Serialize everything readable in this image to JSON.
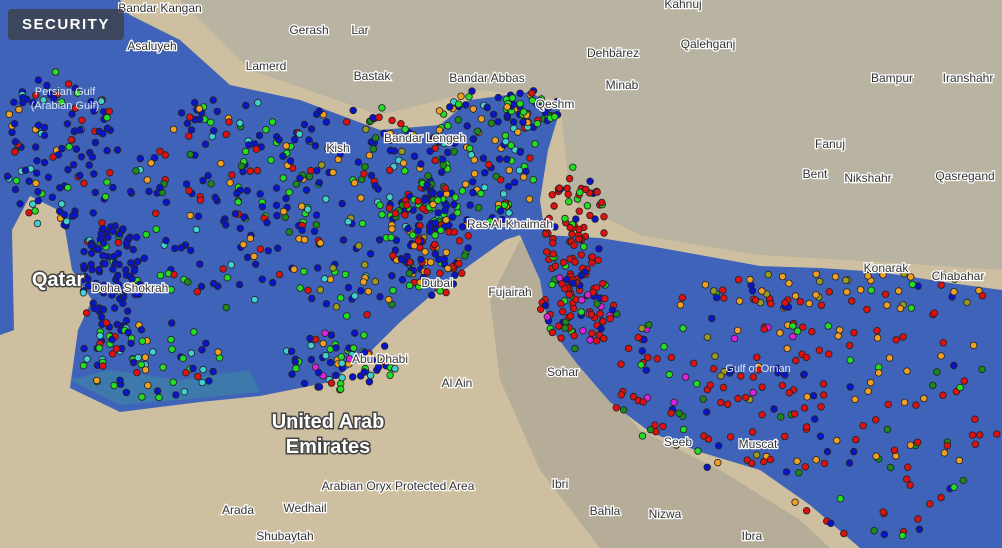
{
  "badge": {
    "label": "SECURITY"
  },
  "colors": {
    "water": "#3f63b8",
    "land": "#cdbf9f",
    "mountains": "#b8b09c"
  },
  "vessel_colors": [
    "#0a14c8",
    "#e01010",
    "#22dd22",
    "#f0a020",
    "#40d0d0",
    "#e020e0",
    "#1a8a1a",
    "#9a9a20"
  ],
  "labels": {
    "water": [
      {
        "text": "Persian Gulf\n(Arabian Gulf)"
      },
      {
        "text": "Gulf of Oman"
      }
    ],
    "countries": [
      {
        "text": "United Arab\nEmirates"
      },
      {
        "text": "Qatar"
      }
    ],
    "places": [
      {
        "text": "Bandar Kangan"
      },
      {
        "text": "Asaluyeh"
      },
      {
        "text": "Gerash"
      },
      {
        "text": "Lar"
      },
      {
        "text": "Lamerd"
      },
      {
        "text": "Bastak"
      },
      {
        "text": "Bandar Abbas"
      },
      {
        "text": "Minab"
      },
      {
        "text": "Kahnuj"
      },
      {
        "text": "Dehbärez"
      },
      {
        "text": "Qalehganj"
      },
      {
        "text": "Bampur"
      },
      {
        "text": "Iranshahr"
      },
      {
        "text": "Fanuj"
      },
      {
        "text": "Bent"
      },
      {
        "text": "Nikshahr"
      },
      {
        "text": "Qasregand"
      },
      {
        "text": "Konarak"
      },
      {
        "text": "Chabahar"
      },
      {
        "text": "Kish"
      },
      {
        "text": "Bandar Lengeh"
      },
      {
        "text": "Qeshm"
      },
      {
        "text": "Ras Al-Khaimah"
      },
      {
        "text": "Dubai"
      },
      {
        "text": "Fujairah"
      },
      {
        "text": "Abu Dhabi"
      },
      {
        "text": "Al Ain"
      },
      {
        "text": "Sohar"
      },
      {
        "text": "Seeb"
      },
      {
        "text": "Muscat"
      },
      {
        "text": "Ibri"
      },
      {
        "text": "Bahla"
      },
      {
        "text": "Nizwa"
      },
      {
        "text": "Ibra"
      },
      {
        "text": "Arada"
      },
      {
        "text": "Wedhail"
      },
      {
        "text": "Shubaytah"
      },
      {
        "text": "Arabian Oryx Protected Area"
      },
      {
        "text": "Doha Shokrah"
      }
    ]
  }
}
